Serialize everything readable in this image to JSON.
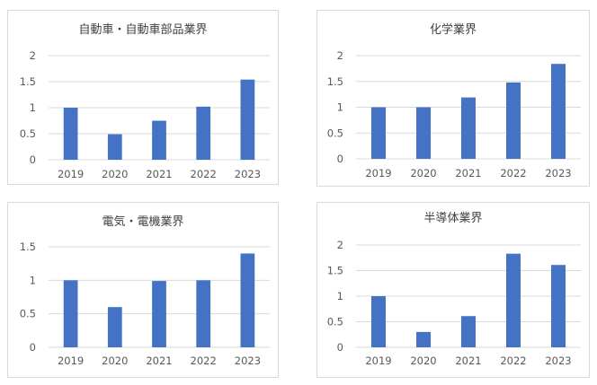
{
  "theme": {
    "bar_color": "#4472c4",
    "grid_color": "#d9d9d9",
    "text_color": "#595959",
    "border_color": "#d9d9d9"
  },
  "chart_data": [
    {
      "type": "bar",
      "title": "自動車・自動車部品業界",
      "categories": [
        "2019",
        "2020",
        "2021",
        "2022",
        "2023"
      ],
      "values": [
        1.0,
        0.49,
        0.75,
        1.02,
        1.54
      ],
      "ylim": [
        0,
        2
      ],
      "yticks": [
        "0",
        "0.5",
        "1",
        "1.5",
        "2"
      ],
      "xlabel": "",
      "ylabel": "",
      "grid": true,
      "legend": "none"
    },
    {
      "type": "bar",
      "title": "化学業界",
      "categories": [
        "2019",
        "2020",
        "2021",
        "2022",
        "2023"
      ],
      "values": [
        1.0,
        1.0,
        1.19,
        1.48,
        1.84
      ],
      "ylim": [
        0,
        2
      ],
      "yticks": [
        "0",
        "0.5",
        "1",
        "1.5",
        "2"
      ],
      "xlabel": "",
      "ylabel": "",
      "grid": true,
      "legend": "none"
    },
    {
      "type": "bar",
      "title": "電気・電機業界",
      "categories": [
        "2019",
        "2020",
        "2021",
        "2022",
        "2023"
      ],
      "values": [
        1.0,
        0.6,
        0.99,
        1.0,
        1.4
      ],
      "ylim": [
        0,
        1.5
      ],
      "yticks": [
        "0",
        "0.5",
        "1",
        "1.5"
      ],
      "xlabel": "",
      "ylabel": "",
      "grid": true,
      "legend": "none"
    },
    {
      "type": "bar",
      "title": "半導体業界",
      "categories": [
        "2019",
        "2020",
        "2021",
        "2022",
        "2023"
      ],
      "values": [
        1.0,
        0.3,
        0.61,
        1.83,
        1.61
      ],
      "ylim": [
        0,
        2
      ],
      "yticks": [
        "0",
        "0.5",
        "1",
        "1.5",
        "2"
      ],
      "xlabel": "",
      "ylabel": "",
      "grid": true,
      "legend": "none"
    }
  ]
}
